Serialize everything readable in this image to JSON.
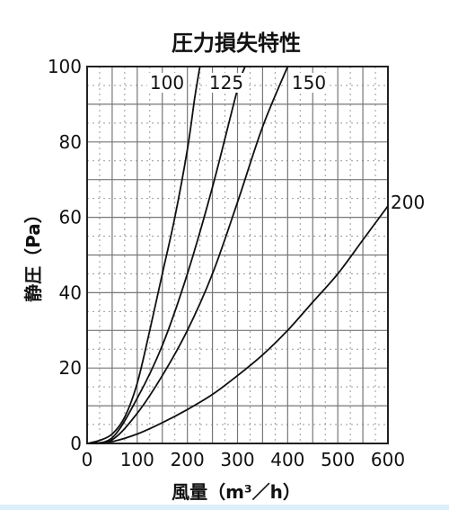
{
  "chart_data": {
    "type": "line",
    "title": "圧力損失特性",
    "xlabel": "風量（m³／h）",
    "ylabel": "静圧（Pa）",
    "xlim": [
      0,
      600
    ],
    "ylim": [
      0,
      100
    ],
    "x_ticks": [
      "0",
      "100",
      "200",
      "300",
      "400",
      "500",
      "600"
    ],
    "y_ticks": [
      "0",
      "20",
      "40",
      "60",
      "80",
      "100"
    ],
    "grid": true,
    "series": [
      {
        "name": "100",
        "points": [
          [
            0,
            0
          ],
          [
            25,
            0.8
          ],
          [
            50,
            2.5
          ],
          [
            75,
            7
          ],
          [
            100,
            16
          ],
          [
            125,
            30
          ],
          [
            150,
            45
          ],
          [
            175,
            60
          ],
          [
            200,
            78
          ],
          [
            215,
            92
          ],
          [
            225,
            100
          ]
        ]
      },
      {
        "name": "125",
        "points": [
          [
            0,
            0
          ],
          [
            50,
            1.5
          ],
          [
            100,
            12
          ],
          [
            150,
            26
          ],
          [
            200,
            45
          ],
          [
            250,
            68
          ],
          [
            300,
            94
          ],
          [
            315,
            100
          ]
        ]
      },
      {
        "name": "150",
        "points": [
          [
            0,
            0
          ],
          [
            50,
            1
          ],
          [
            100,
            8
          ],
          [
            150,
            18
          ],
          [
            200,
            30
          ],
          [
            250,
            45
          ],
          [
            300,
            64
          ],
          [
            350,
            84
          ],
          [
            400,
            100
          ]
        ]
      },
      {
        "name": "200",
        "points": [
          [
            0,
            0
          ],
          [
            50,
            0.5
          ],
          [
            100,
            2.5
          ],
          [
            150,
            5.5
          ],
          [
            200,
            9
          ],
          [
            250,
            13
          ],
          [
            300,
            18
          ],
          [
            350,
            23.5
          ],
          [
            400,
            30
          ],
          [
            450,
            37.5
          ],
          [
            500,
            45
          ],
          [
            550,
            54
          ],
          [
            600,
            63
          ]
        ]
      }
    ]
  }
}
